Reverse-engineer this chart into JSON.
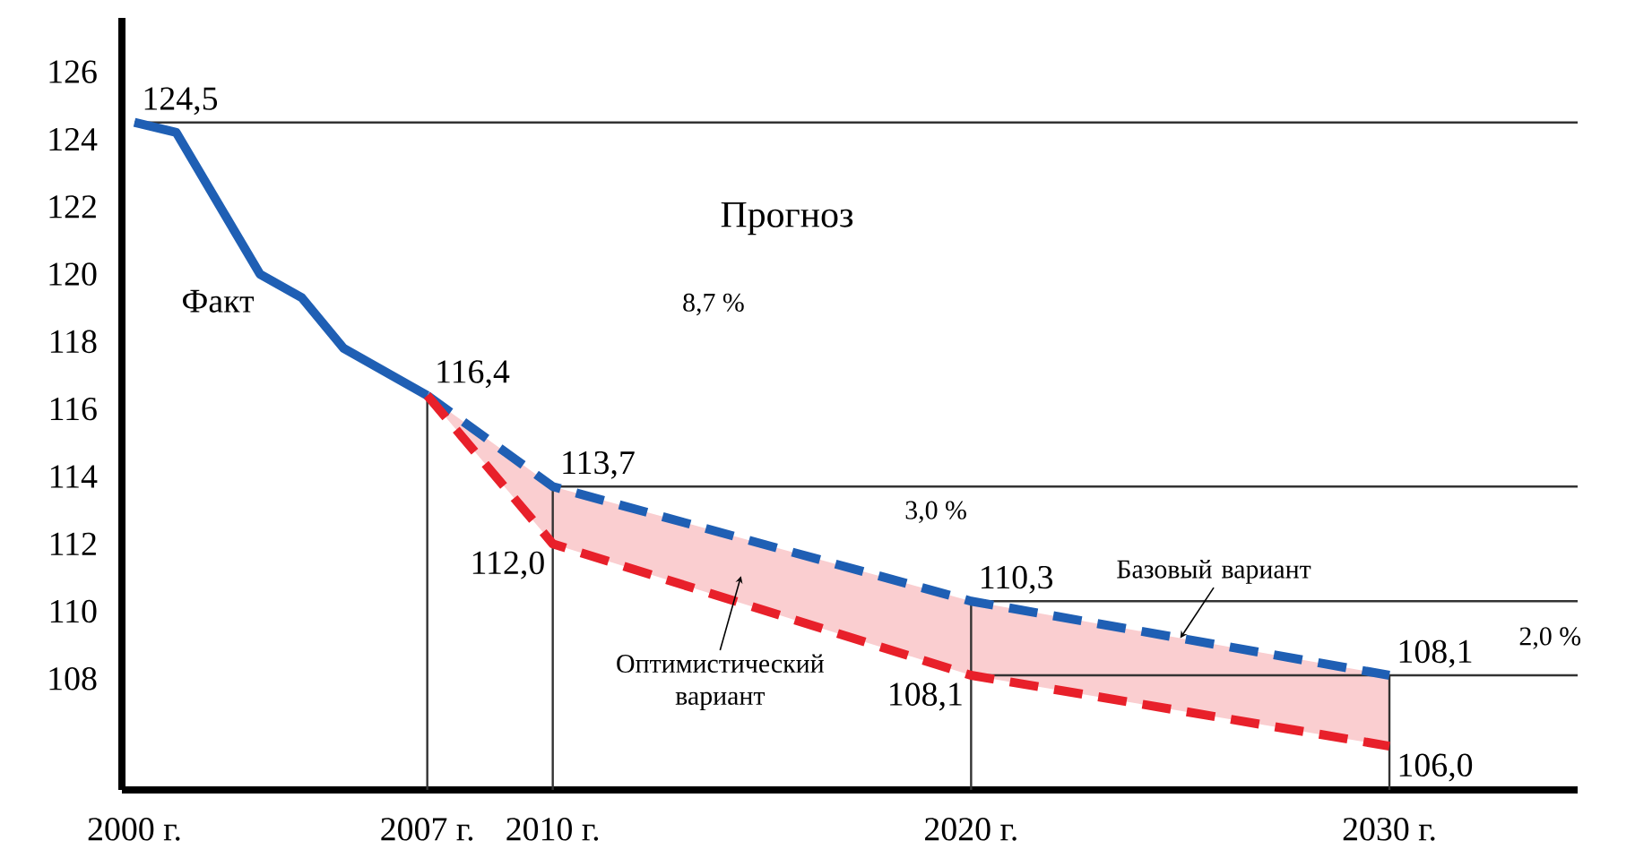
{
  "chart_data": {
    "type": "line",
    "xlim": [
      1999.7,
      2034.5
    ],
    "ylim": [
      104.7,
      127.6
    ],
    "xticks": [
      {
        "value": 2000,
        "label": "2000 г."
      },
      {
        "value": 2007,
        "label": "2007 г."
      },
      {
        "value": 2010,
        "label": "2010 г."
      },
      {
        "value": 2020,
        "label": "2020 г."
      },
      {
        "value": 2030,
        "label": "2030 г."
      }
    ],
    "yticks": [
      108,
      110,
      112,
      114,
      116,
      118,
      120,
      122,
      124,
      126
    ],
    "series": [
      {
        "name": "Факт",
        "color": "#1f5fb4",
        "line_style": "solid",
        "x": [
          2000,
          2001,
          2003,
          2004,
          2005,
          2007
        ],
        "values": [
          124.5,
          124.2,
          120.0,
          119.3,
          117.8,
          116.4
        ],
        "value_labels": [
          "124,5",
          null,
          null,
          null,
          null,
          "116,4"
        ]
      },
      {
        "name": "Базовый вариант",
        "color": "#1f5fb4",
        "line_style": "dashed",
        "x": [
          2007,
          2010,
          2020,
          2030
        ],
        "values": [
          116.4,
          113.7,
          110.3,
          108.1
        ],
        "value_labels": [
          null,
          "113,7",
          "110,3",
          "108,1"
        ],
        "lower": [
          116.4,
          112.0,
          108.1,
          106.0
        ],
        "upper": [
          116.4,
          113.7,
          110.3,
          108.1
        ]
      },
      {
        "name": "Оптимистический вариант",
        "color": "#e8202a",
        "line_style": "dashed",
        "x": [
          2007,
          2010,
          2020,
          2030
        ],
        "values": [
          116.4,
          112.0,
          108.1,
          106.0
        ],
        "value_labels": [
          null,
          "112,0",
          "108,1",
          "106,0"
        ]
      }
    ],
    "ref_lines": [
      {
        "axis": "x",
        "value": 2007
      },
      {
        "axis": "x",
        "value": 2010
      },
      {
        "axis": "x",
        "value": 2020
      },
      {
        "axis": "x",
        "value": 2030
      },
      {
        "axis": "y",
        "value": 124.5
      },
      {
        "axis": "y",
        "value": 113.7
      },
      {
        "axis": "y",
        "value": 110.3
      },
      {
        "axis": "y",
        "value": 108.1
      }
    ],
    "annotations": [
      "Прогноз",
      "8,7 %",
      "3,0 %",
      "2,0 %"
    ]
  }
}
